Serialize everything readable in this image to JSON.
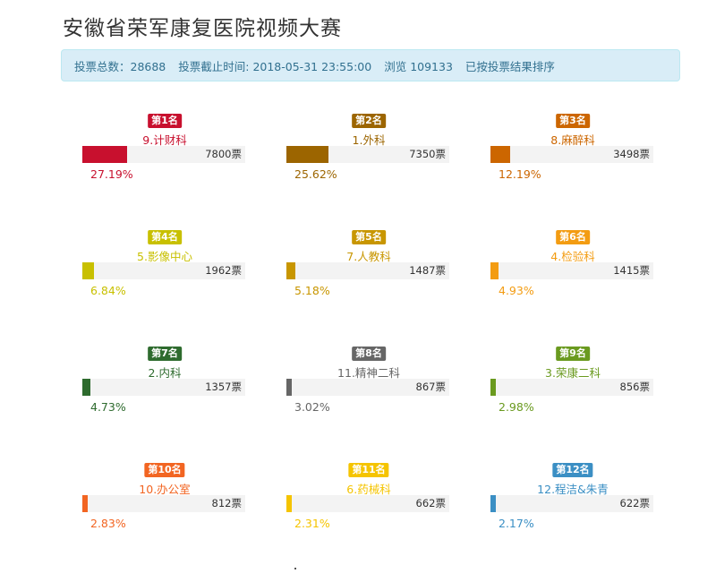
{
  "page": {
    "title": "安徽省荣军康复医院视频大赛"
  },
  "info": {
    "total_label": "投票总数：28688",
    "deadline_label": "投票截止时间: 2018-05-31 23:55:00",
    "views_label": "浏览 109133",
    "sort_label": "已按投票结果排序"
  },
  "vote_unit": "票",
  "entries": [
    {
      "rank": "第1名",
      "name": "9.计财科",
      "votes": "7800票",
      "percent": "27.19%",
      "fraction": 0.2719,
      "color": "#c8102e"
    },
    {
      "rank": "第2名",
      "name": "1.外科",
      "votes": "7350票",
      "percent": "25.62%",
      "fraction": 0.2562,
      "color": "#9c6500"
    },
    {
      "rank": "第3名",
      "name": "8.麻醉科",
      "votes": "3498票",
      "percent": "12.19%",
      "fraction": 0.1219,
      "color": "#cc6600"
    },
    {
      "rank": "第4名",
      "name": "5.影像中心",
      "votes": "1962票",
      "percent": "6.84%",
      "fraction": 0.0684,
      "color": "#c8c000"
    },
    {
      "rank": "第5名",
      "name": "7.人教科",
      "votes": "1487票",
      "percent": "5.18%",
      "fraction": 0.0518,
      "color": "#c89600"
    },
    {
      "rank": "第6名",
      "name": "4.检验科",
      "votes": "1415票",
      "percent": "4.93%",
      "fraction": 0.0493,
      "color": "#f39c12"
    },
    {
      "rank": "第7名",
      "name": "2.内科",
      "votes": "1357票",
      "percent": "4.73%",
      "fraction": 0.0473,
      "color": "#2e6b2e"
    },
    {
      "rank": "第8名",
      "name": "11.精神二科",
      "votes": "867票",
      "percent": "3.02%",
      "fraction": 0.0302,
      "color": "#666666"
    },
    {
      "rank": "第9名",
      "name": "3.荣康二科",
      "votes": "856票",
      "percent": "2.98%",
      "fraction": 0.0298,
      "color": "#6a9a1f"
    },
    {
      "rank": "第10名",
      "name": "10.办公室",
      "votes": "812票",
      "percent": "2.83%",
      "fraction": 0.0283,
      "color": "#f26522"
    },
    {
      "rank": "第11名",
      "name": "6.药械科",
      "votes": "662票",
      "percent": "2.31%",
      "fraction": 0.0231,
      "color": "#f5c400"
    },
    {
      "rank": "第12名",
      "name": "12.程洁&朱青",
      "votes": "622票",
      "percent": "2.17%",
      "fraction": 0.0217,
      "color": "#3b8fc4"
    }
  ]
}
